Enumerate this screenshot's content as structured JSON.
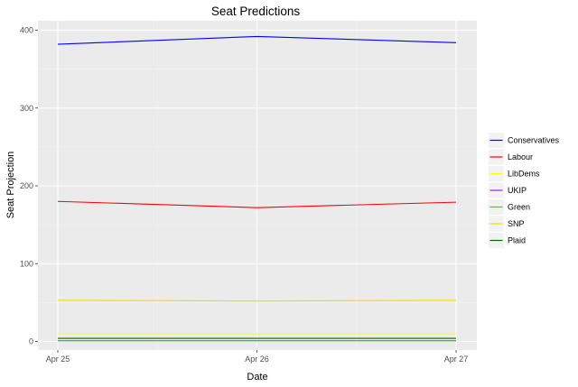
{
  "chart_data": {
    "type": "line",
    "title": "Seat Predictions",
    "xlabel": "Date",
    "ylabel": "Seat Projection",
    "categories": [
      "Apr 25",
      "Apr 26",
      "Apr 27"
    ],
    "ylim": [
      0,
      400
    ],
    "yticks": [
      0,
      100,
      200,
      300,
      400
    ],
    "grid": true,
    "legend_position": "right",
    "series": [
      {
        "name": "Conservatives",
        "color": "#0000ff",
        "values": [
          382,
          392,
          384
        ]
      },
      {
        "name": "Labour",
        "color": "#ff0000",
        "values": [
          180,
          172,
          179
        ]
      },
      {
        "name": "LibDems",
        "color": "#ffff00",
        "values": [
          10,
          10,
          10
        ]
      },
      {
        "name": "UKIP",
        "color": "#a020f0",
        "values": [
          1,
          1,
          1
        ]
      },
      {
        "name": "Green",
        "color": "#00ee00",
        "values": [
          1,
          1,
          1
        ]
      },
      {
        "name": "SNP",
        "color": "#ffd700",
        "values": [
          53,
          52,
          53
        ]
      },
      {
        "name": "Plaid",
        "color": "#006400",
        "values": [
          4,
          4,
          4
        ]
      }
    ]
  }
}
